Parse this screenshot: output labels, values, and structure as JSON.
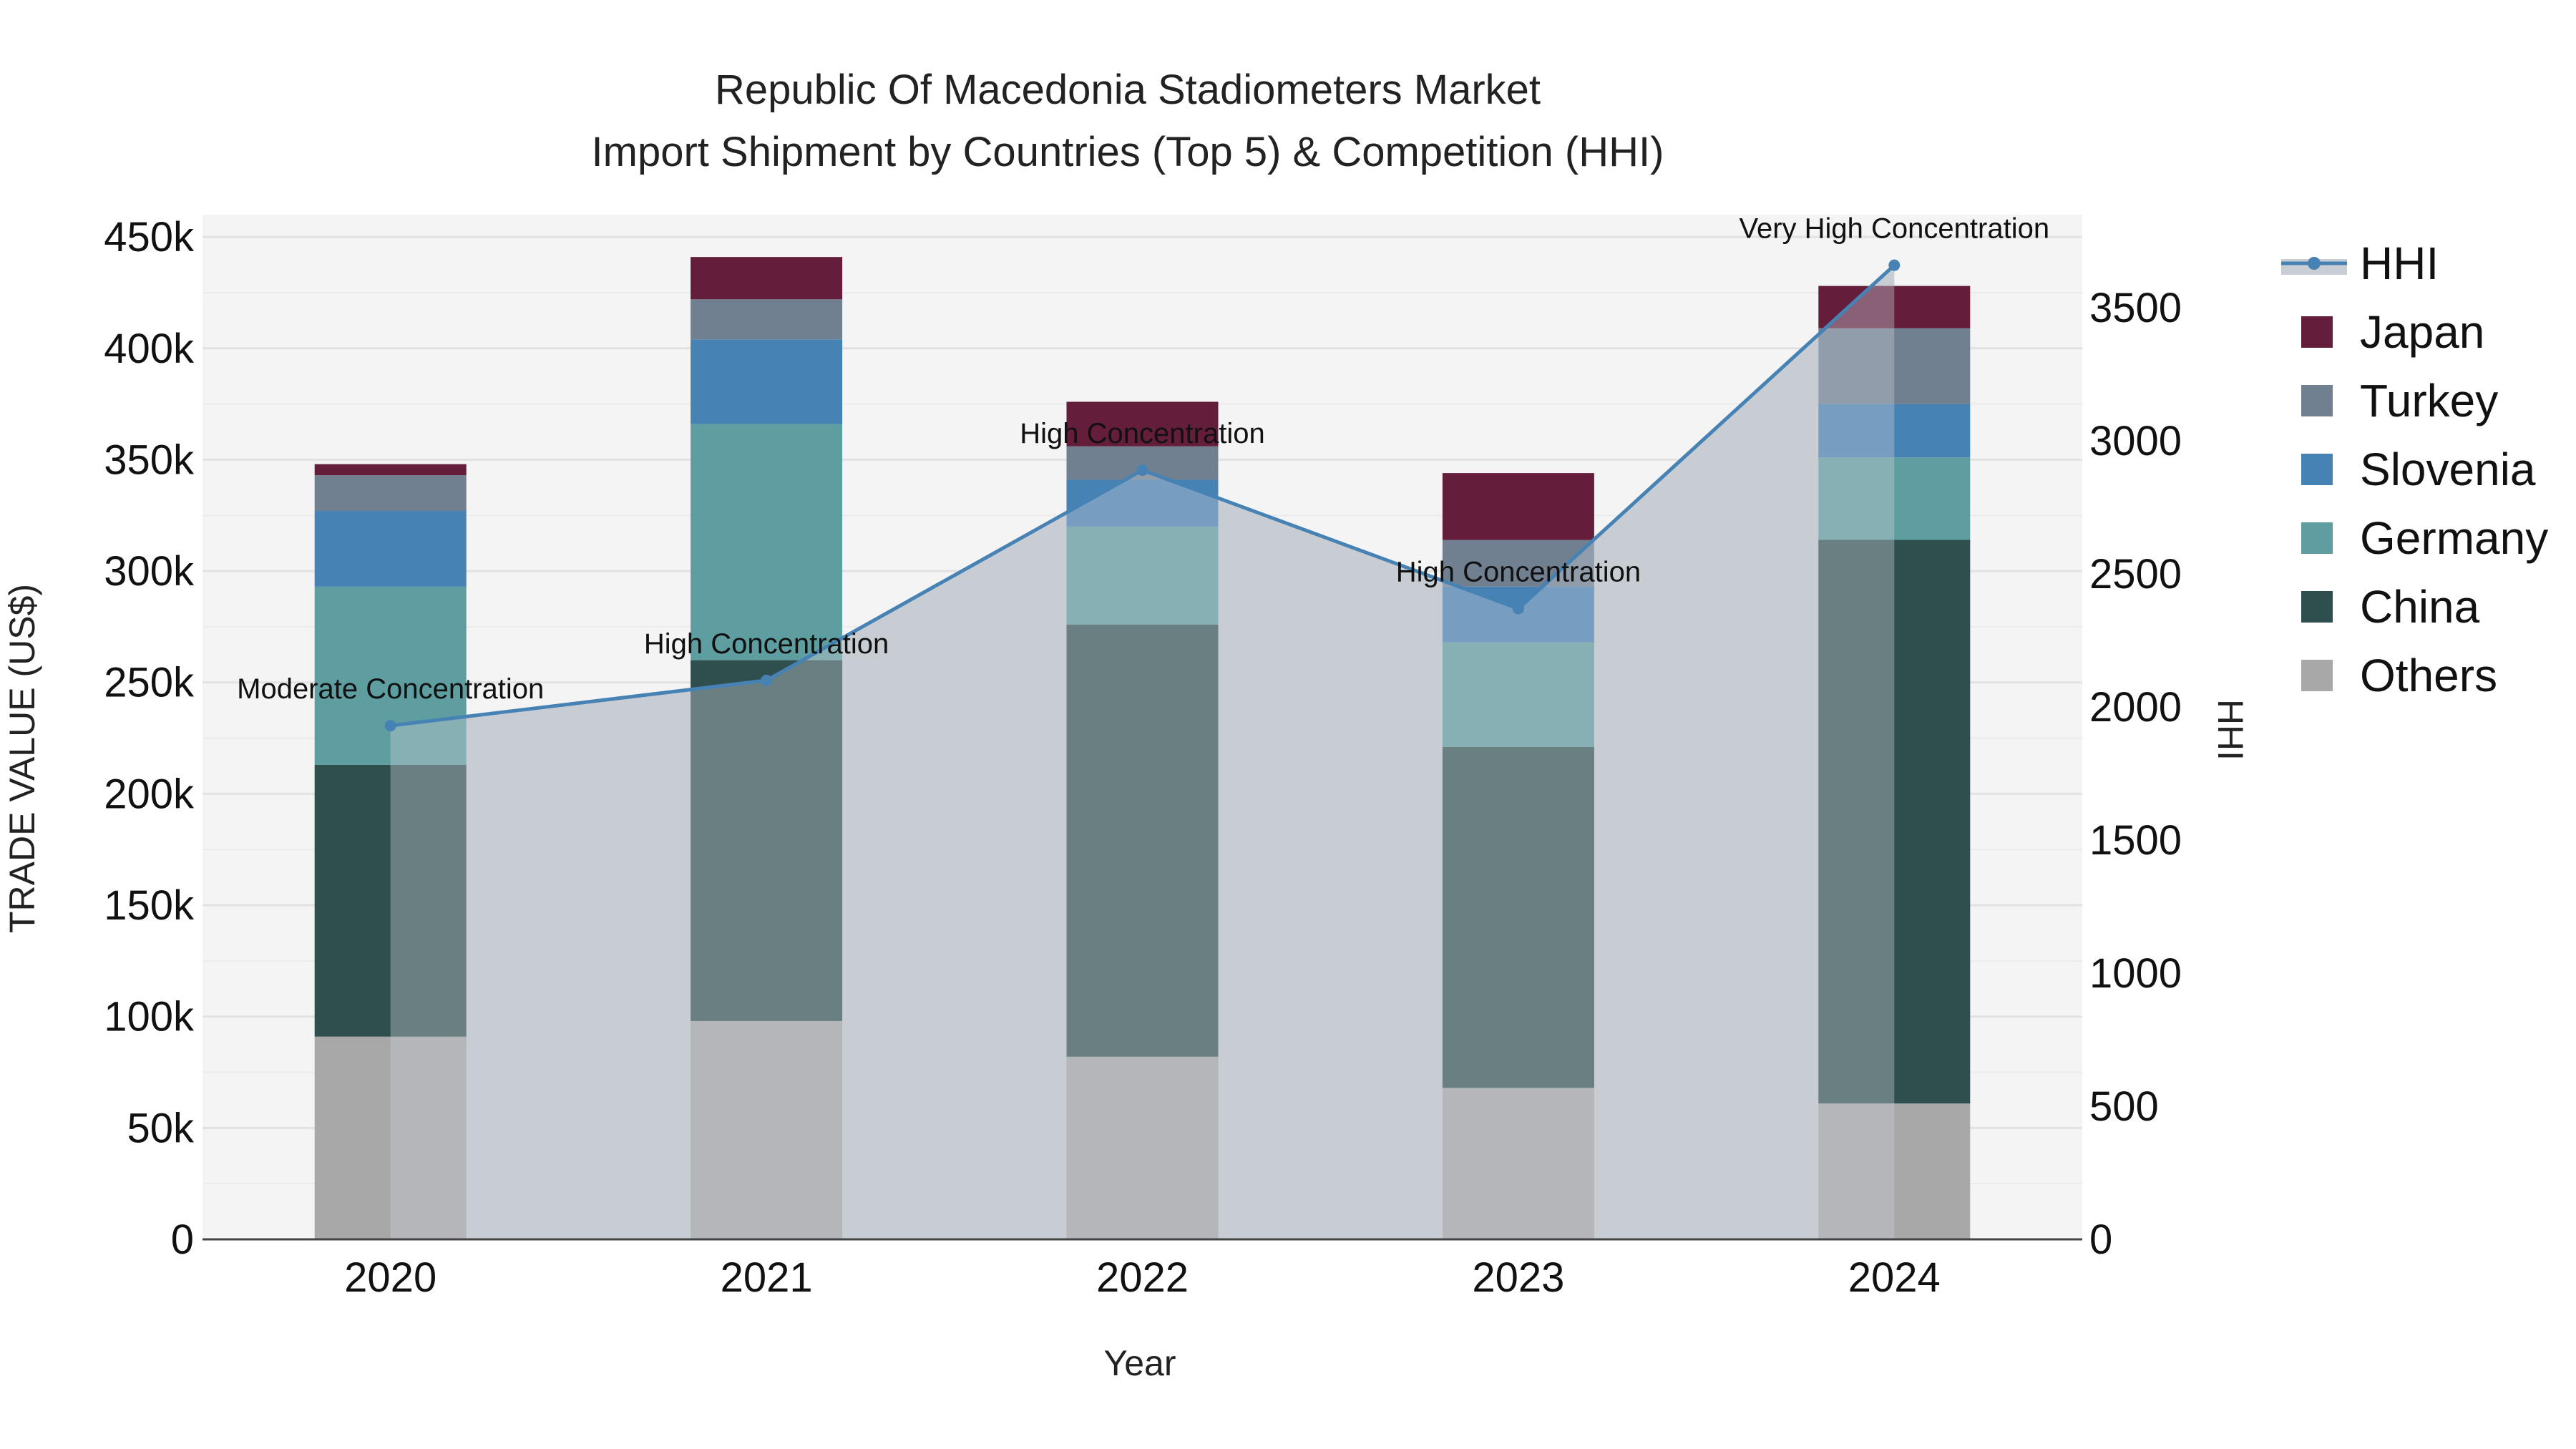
{
  "chart_data": {
    "type": "bar",
    "title_line1": "Republic Of Macedonia Stadiometers Market",
    "title_line2": "Import Shipment by Countries (Top 5) & Competition (HHI)",
    "xlabel": "Year",
    "ylabel": "TRADE VALUE (US$)",
    "y2label": "HHI",
    "ylim": [
      0,
      460000
    ],
    "y2lim": [
      0,
      3850
    ],
    "y_ticks": [
      0,
      50000,
      100000,
      150000,
      200000,
      250000,
      300000,
      350000,
      400000,
      450000
    ],
    "y_tick_labels": [
      "0",
      "50k",
      "100k",
      "150k",
      "200k",
      "250k",
      "300k",
      "350k",
      "400k",
      "450k"
    ],
    "y2_ticks": [
      0,
      500,
      1000,
      1500,
      2000,
      2500,
      3000,
      3500
    ],
    "y2_tick_labels": [
      "0",
      "500",
      "1000",
      "1500",
      "2000",
      "2500",
      "3000",
      "3500"
    ],
    "categories": [
      "2020",
      "2021",
      "2022",
      "2023",
      "2024"
    ],
    "series": [
      {
        "name": "Others",
        "color": "#a8a8a8",
        "values": [
          91000,
          98000,
          82000,
          68000,
          61000
        ]
      },
      {
        "name": "China",
        "color": "#2f4f4f",
        "values": [
          122000,
          162000,
          194000,
          153000,
          253000
        ]
      },
      {
        "name": "Germany",
        "color": "#5f9ea0",
        "values": [
          80000,
          106000,
          44000,
          47000,
          37000
        ]
      },
      {
        "name": "Slovenia",
        "color": "#4682b4",
        "values": [
          34000,
          38000,
          21000,
          25000,
          24000
        ]
      },
      {
        "name": "Turkey",
        "color": "#708090",
        "values": [
          16000,
          18000,
          15000,
          21000,
          34000
        ]
      },
      {
        "name": "Japan",
        "color": "#641e3c",
        "values": [
          5000,
          19000,
          20000,
          30000,
          19000
        ]
      }
    ],
    "hhi": {
      "name": "HHI",
      "color": "#4682b4",
      "values": [
        1930,
        2100,
        2890,
        2370,
        3660
      ],
      "labels": [
        "Moderate Concentration",
        "High Concentration",
        "High Concentration",
        "High Concentration",
        "Very High Concentration"
      ]
    },
    "legend_order": [
      "HHI",
      "Japan",
      "Turkey",
      "Slovenia",
      "Germany",
      "China",
      "Others"
    ],
    "legend_position": "right"
  }
}
